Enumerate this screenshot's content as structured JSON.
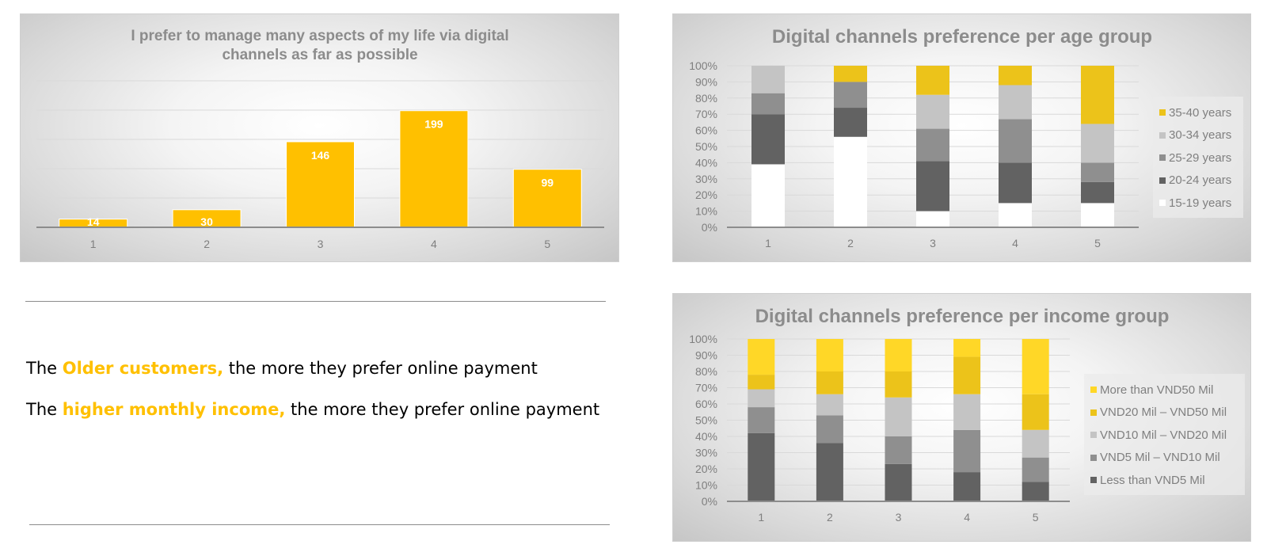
{
  "colors": {
    "bar": "#ffc000",
    "highlight": "#ffc000",
    "gridline": "#d9d9d9",
    "axis": "#8c8c8c"
  },
  "chart_data": [
    {
      "id": "bar",
      "type": "bar",
      "title_lines": [
        "I prefer to manage many aspects of my life via digital",
        "channels as far as possible"
      ],
      "categories": [
        "1",
        "2",
        "3",
        "4",
        "5"
      ],
      "values": [
        14,
        30,
        146,
        199,
        99
      ],
      "data_labels": [
        "14",
        "30",
        "146",
        "199",
        "99"
      ],
      "ylim": [
        0,
        250
      ],
      "grid": true,
      "legend": "none"
    },
    {
      "id": "age",
      "type": "bar",
      "stacked": "percent",
      "title_lines": [
        "Digital channels preference per age group"
      ],
      "categories": [
        "1",
        "2",
        "3",
        "4",
        "5"
      ],
      "y_ticks": [
        "0%",
        "10%",
        "20%",
        "30%",
        "40%",
        "50%",
        "60%",
        "70%",
        "80%",
        "90%",
        "100%"
      ],
      "series": [
        {
          "name": "15-19 years",
          "color": "#ffffff",
          "values": [
            39,
            56,
            10,
            15,
            15
          ]
        },
        {
          "name": "20-24 years",
          "color": "#626262",
          "values": [
            31,
            18,
            31,
            25,
            13
          ]
        },
        {
          "name": "25-29 years",
          "color": "#8f8f8f",
          "values": [
            13,
            16,
            20,
            27,
            12
          ]
        },
        {
          "name": "30-34 years",
          "color": "#c4c4c4",
          "values": [
            17,
            0,
            21,
            21,
            24
          ]
        },
        {
          "name": "35-40 years",
          "color": "#ecc31a",
          "values": [
            0,
            10,
            18,
            12,
            36
          ]
        }
      ],
      "legend": "right"
    },
    {
      "id": "income",
      "type": "bar",
      "stacked": "percent",
      "title_lines": [
        "Digital channels preference per income group"
      ],
      "categories": [
        "1",
        "2",
        "3",
        "4",
        "5"
      ],
      "y_ticks": [
        "0%",
        "10%",
        "20%",
        "30%",
        "40%",
        "50%",
        "60%",
        "70%",
        "80%",
        "90%",
        "100%"
      ],
      "series": [
        {
          "name": "Less than VND5 Mil",
          "color": "#626262",
          "values": [
            42,
            36,
            23,
            18,
            12
          ]
        },
        {
          "name": "VND5 Mil – VND10 Mil",
          "color": "#8f8f8f",
          "values": [
            16,
            17,
            17,
            26,
            15
          ]
        },
        {
          "name": "VND10 Mil – VND20 Mil",
          "color": "#c4c4c4",
          "values": [
            11,
            13,
            24,
            22,
            17
          ]
        },
        {
          "name": "VND20 Mil – VND50 Mil",
          "color": "#ecc31a",
          "values": [
            9,
            14,
            16,
            23,
            22
          ]
        },
        {
          "name": "More than VND50 Mil",
          "color": "#ffd727",
          "values": [
            22,
            20,
            20,
            11,
            34
          ]
        }
      ],
      "legend": "right"
    }
  ],
  "statements": [
    {
      "prefix": "The ",
      "highlight": "Older customers,",
      "suffix": " the more they prefer online payment"
    },
    {
      "prefix": "The ",
      "highlight": "higher monthly income,",
      "suffix": " the more they prefer online payment"
    }
  ]
}
